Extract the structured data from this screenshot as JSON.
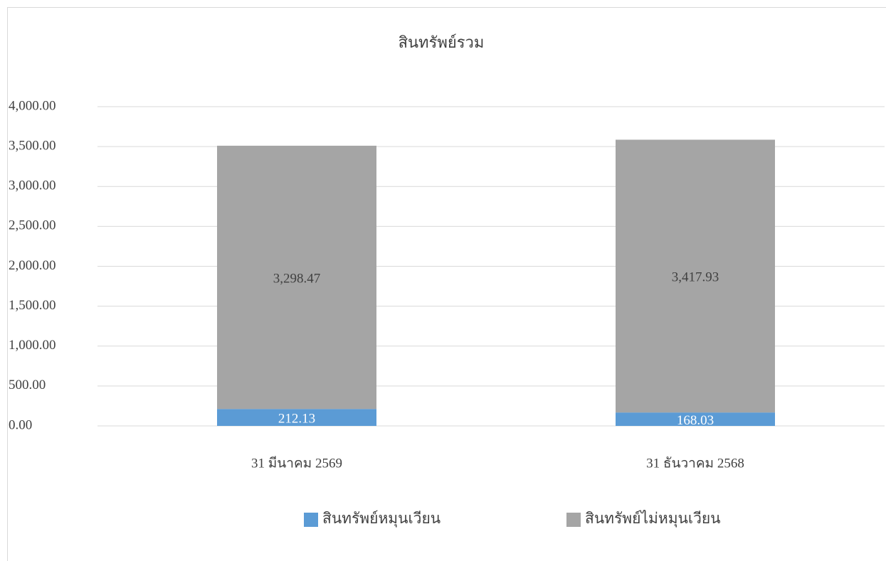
{
  "chart_data": {
    "type": "stacked_bar",
    "title": "สินทรัพย์รวม",
    "categories": [
      "31 มีนาคม 2569",
      "31 ธันวาคม 2568"
    ],
    "series": [
      {
        "name": "สินทรัพย์หมุนเวียน",
        "color": "#5b9bd5",
        "values": [
          212.13,
          168.03
        ],
        "value_labels": [
          "212.13",
          "168.03"
        ]
      },
      {
        "name": "สินทรัพย์ไม่หมุนเวียน",
        "color": "#a5a5a5",
        "values": [
          3298.47,
          3417.93
        ],
        "value_labels": [
          "3,298.47",
          "3,417.93"
        ]
      }
    ],
    "ylim": [
      0,
      4000
    ],
    "yticks": [
      {
        "value": 0,
        "label": "0.00"
      },
      {
        "value": 500,
        "label": "500.00"
      },
      {
        "value": 1000,
        "label": "1,000.00"
      },
      {
        "value": 1500,
        "label": "1,500.00"
      },
      {
        "value": 2000,
        "label": "2,000.00"
      },
      {
        "value": 2500,
        "label": "2,500.00"
      },
      {
        "value": 3000,
        "label": "3,000.00"
      },
      {
        "value": 3500,
        "label": "3,500.00"
      },
      {
        "value": 4000,
        "label": "4,000.00"
      }
    ],
    "grid": true,
    "legend": "bottom"
  }
}
